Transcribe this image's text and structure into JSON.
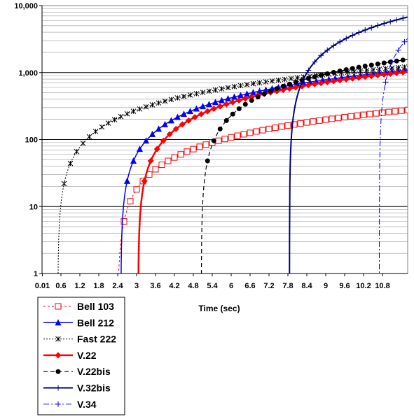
{
  "chart_data": {
    "type": "line",
    "title": "",
    "xlabel": "Time (sec)",
    "ylabel": "",
    "yscale": "log",
    "ylim": [
      1,
      10000
    ],
    "xlim": [
      0,
      11.6
    ],
    "grid": true,
    "legend_position": "bottom-left",
    "y_tick_labels": [
      "1",
      "10",
      "100",
      "1,000",
      "10,000"
    ],
    "y_tick_values": [
      1,
      10,
      100,
      1000,
      10000
    ],
    "x_tick_labels": [
      "0.01",
      "0.6",
      "1.2",
      "1.8",
      "2.4",
      "3",
      "3.6",
      "4.2",
      "4.8",
      "5.4",
      "6",
      "6.6",
      "7.2",
      "7.8",
      "8.4",
      "9",
      "9.6",
      "10.2",
      "10.8"
    ],
    "x_tick_values": [
      0.01,
      0.6,
      1.2,
      1.8,
      2.4,
      3.0,
      3.6,
      4.2,
      4.8,
      5.4,
      6.0,
      6.6,
      7.2,
      7.8,
      8.4,
      9.0,
      9.6,
      10.2,
      10.8
    ],
    "series": [
      {
        "name": "Bell 103",
        "color": "#ff0000",
        "dash": "3,3",
        "width": 1,
        "marker": "square-open",
        "start": 2.4,
        "rate": 30,
        "end": 11.6,
        "step": 0.2,
        "skip_first": 0
      },
      {
        "name": "Bell 212",
        "color": "#0000ff",
        "dash": "",
        "width": 1.5,
        "marker": "triangle",
        "start": 2.5,
        "rate": 120,
        "end": 11.6,
        "step": 0.2,
        "skip_first": 0
      },
      {
        "name": "Fast 222",
        "color": "#000000",
        "dash": "2,2",
        "width": 1,
        "marker": "x",
        "start": 0.5,
        "rate": 110,
        "end": 11.6,
        "step": 0.2,
        "skip_first": 0
      },
      {
        "name": "V.22",
        "color": "#ff0000",
        "dash": "",
        "width": 2.5,
        "marker": "diamond",
        "start": 3.05,
        "rate": 120,
        "end": 11.6,
        "step": 0.2,
        "skip_first": 0
      },
      {
        "name": "V.22bis",
        "color": "#000000",
        "dash": "6,4",
        "width": 1.2,
        "marker": "circle",
        "start": 5.05,
        "rate": 240,
        "end": 11.6,
        "step": 0.2,
        "skip_first": 0
      },
      {
        "name": "V.32bis",
        "color": "#000080",
        "dash": "",
        "width": 2,
        "marker": "plus",
        "start": 7.85,
        "rate": 1800,
        "end": 11.6,
        "step": 0.2,
        "skip_first": 1
      },
      {
        "name": "V.34",
        "color": "#0000ff",
        "dash": "8,3,2,3",
        "width": 1,
        "marker": "plus",
        "start": 10.7,
        "rate": 3600,
        "end": 11.6,
        "step": 0.2,
        "skip_first": 0
      }
    ]
  }
}
